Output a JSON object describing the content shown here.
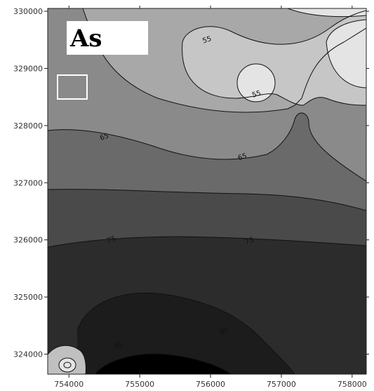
{
  "chart_data": {
    "type": "contour",
    "title": "As",
    "xlabel": "",
    "ylabel": "",
    "xlim": [
      753700,
      758200
    ],
    "ylim": [
      323650,
      330050
    ],
    "x_ticks": [
      754000,
      755000,
      756000,
      757000,
      758000
    ],
    "x_tick_labels": [
      "754000",
      "755000",
      "756000",
      "757000",
      "758000"
    ],
    "y_ticks": [
      324000,
      325000,
      326000,
      327000,
      328000,
      329000,
      330000
    ],
    "y_tick_labels": [
      "324000",
      "325000",
      "326000",
      "327000",
      "328000",
      "329000",
      "330000"
    ],
    "contour_labels": [
      {
        "text": "55",
        "x": 755950,
        "y": 329500
      },
      {
        "text": "55",
        "x": 756650,
        "y": 328550
      },
      {
        "text": "65",
        "x": 754500,
        "y": 327800
      },
      {
        "text": "65",
        "x": 756450,
        "y": 327450
      },
      {
        "text": "75",
        "x": 754600,
        "y": 326000
      },
      {
        "text": "75",
        "x": 756550,
        "y": 325980
      },
      {
        "text": "85",
        "x": 756200,
        "y": 324400
      },
      {
        "text": "95",
        "x": 754700,
        "y": 324150
      }
    ],
    "grid": false,
    "legend": "none",
    "colors": {
      "highest": "#000000",
      "high": "#2c2c2c",
      "mid_high": "#4a4a4a",
      "mid": "#6a6a6a",
      "mid_low": "#8a8a8a",
      "low": "#a8a8a8",
      "lower": "#c6c6c6",
      "lowest": "#e4e4e4"
    }
  }
}
